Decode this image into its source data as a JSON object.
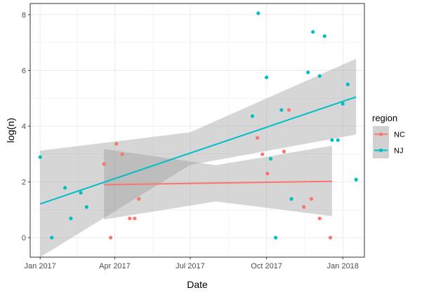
{
  "chart_data": {
    "type": "scatter",
    "xlabel": "Date",
    "ylabel": "log(n)",
    "x_ticks": [
      "2017-01-01",
      "2017-04-01",
      "2017-07-01",
      "2017-10-01",
      "2018-01-01"
    ],
    "x_tick_labels": [
      "Jan 2017",
      "Apr 2017",
      "Jul 2017",
      "Oct 2017",
      "Jan 2018"
    ],
    "y_ticks": [
      0,
      2,
      4,
      6,
      8
    ],
    "xlim": [
      "2016-12-20",
      "2018-01-27"
    ],
    "ylim": [
      -0.7,
      8.4
    ],
    "grid": true,
    "legend": {
      "title": "region",
      "position": "right"
    },
    "series": [
      {
        "name": "NC",
        "color": "#F8766D",
        "points": [
          {
            "x": "2017-03-19",
            "y": 2.64
          },
          {
            "x": "2017-03-27",
            "y": 0.0
          },
          {
            "x": "2017-04-03",
            "y": 3.37
          },
          {
            "x": "2017-04-10",
            "y": 2.99
          },
          {
            "x": "2017-04-19",
            "y": 0.69
          },
          {
            "x": "2017-04-25",
            "y": 0.69
          },
          {
            "x": "2017-04-30",
            "y": 1.39
          },
          {
            "x": "2017-09-20",
            "y": 3.58
          },
          {
            "x": "2017-09-26",
            "y": 2.99
          },
          {
            "x": "2017-10-02",
            "y": 2.3
          },
          {
            "x": "2017-10-22",
            "y": 3.09
          },
          {
            "x": "2017-10-28",
            "y": 4.58
          },
          {
            "x": "2017-11-15",
            "y": 1.1
          },
          {
            "x": "2017-11-24",
            "y": 1.39
          },
          {
            "x": "2017-12-04",
            "y": 0.69
          },
          {
            "x": "2017-12-17",
            "y": 0.0
          }
        ],
        "trend": {
          "x": [
            "2017-03-19",
            "2017-12-19"
          ],
          "y": [
            1.9,
            2.02
          ]
        },
        "band": {
          "x": [
            "2017-03-19",
            "2017-08-01",
            "2017-12-19"
          ],
          "lower": [
            0.65,
            1.3,
            0.77
          ],
          "upper": [
            3.18,
            2.6,
            3.3
          ]
        }
      },
      {
        "name": "NJ",
        "color": "#00BFC4",
        "points": [
          {
            "x": "2017-01-01",
            "y": 2.89
          },
          {
            "x": "2017-01-15",
            "y": 0.0
          },
          {
            "x": "2017-01-31",
            "y": 1.79
          },
          {
            "x": "2017-02-07",
            "y": 0.69
          },
          {
            "x": "2017-02-19",
            "y": 1.61
          },
          {
            "x": "2017-02-26",
            "y": 1.1
          },
          {
            "x": "2017-09-14",
            "y": 4.36
          },
          {
            "x": "2017-09-21",
            "y": 8.05
          },
          {
            "x": "2017-10-01",
            "y": 5.75
          },
          {
            "x": "2017-10-06",
            "y": 2.83
          },
          {
            "x": "2017-10-12",
            "y": 0.0
          },
          {
            "x": "2017-10-19",
            "y": 4.58
          },
          {
            "x": "2017-10-31",
            "y": 1.39
          },
          {
            "x": "2017-11-20",
            "y": 5.93
          },
          {
            "x": "2017-11-26",
            "y": 7.38
          },
          {
            "x": "2017-12-04",
            "y": 5.8
          },
          {
            "x": "2017-12-10",
            "y": 7.23
          },
          {
            "x": "2017-12-19",
            "y": 3.5
          },
          {
            "x": "2017-12-26",
            "y": 3.5
          },
          {
            "x": "2018-01-01",
            "y": 4.8
          },
          {
            "x": "2018-01-07",
            "y": 5.5
          },
          {
            "x": "2018-01-17",
            "y": 2.08
          }
        ],
        "trend": {
          "x": [
            "2017-01-01",
            "2018-01-17"
          ],
          "y": [
            1.21,
            5.05
          ]
        },
        "band": {
          "x": [
            "2017-01-01",
            "2017-07-01",
            "2018-01-17"
          ],
          "lower": [
            -0.7,
            2.61,
            3.7
          ],
          "upper": [
            3.12,
            3.78,
            6.42
          ]
        }
      }
    ]
  }
}
